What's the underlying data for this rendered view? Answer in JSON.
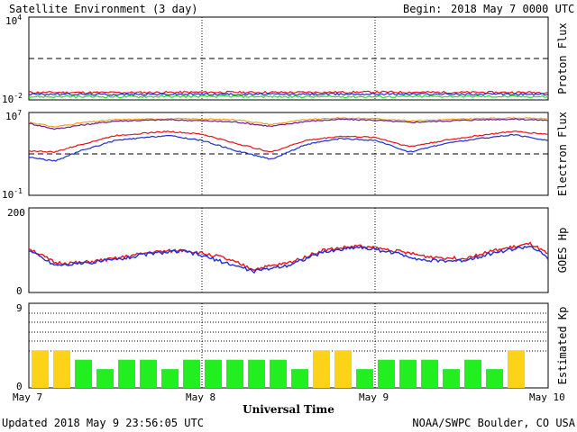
{
  "header": {
    "title": "Satellite Environment (3 day)",
    "begin_label": "Begin:",
    "begin_value": "2018 May 7 0000 UTC"
  },
  "footer": {
    "updated": "Updated 2018 May  9 23:56:05 UTC",
    "source": "NOAA/SWPC Boulder, CO USA"
  },
  "x_axis": {
    "label": "Universal Time",
    "ticks": [
      "May 7",
      "May 8",
      "May 9",
      "May 10"
    ]
  },
  "panels": {
    "proton": {
      "ylabel": "Proton Flux",
      "tick_top_base": "10",
      "tick_top_exp": "4",
      "tick_bot_base": "10",
      "tick_bot_exp": "-2"
    },
    "electron": {
      "ylabel": "Electron Flux",
      "tick_top_base": "10",
      "tick_top_exp": "7",
      "tick_bot_base": "10",
      "tick_bot_exp": "-1"
    },
    "hp": {
      "ylabel": "GOES Hp",
      "tick_top": "200",
      "tick_bot": "0"
    },
    "kp": {
      "ylabel": "Estimated Kp",
      "tick_top": "9",
      "tick_bot": "0"
    }
  },
  "colors": {
    "red": "#e8141c",
    "blue": "#1c2fd8",
    "green": "#22dd22",
    "purple": "#6a1a9a",
    "orange": "#f0a020",
    "kp_green": "#22ee22",
    "kp_yellow": "#ffd21a"
  },
  "chart_data": [
    {
      "type": "line",
      "panel": "Proton Flux",
      "yscale": "log",
      "ylim": [
        0.01,
        10000
      ],
      "threshold": 10,
      "x_days": [
        0,
        0.5,
        1,
        1.5,
        2,
        2.5,
        3
      ],
      "series": [
        {
          "color": "red",
          "values": [
            0.035,
            0.034,
            0.036,
            0.035,
            0.037,
            0.035,
            0.035
          ]
        },
        {
          "color": "blue",
          "values": [
            0.026,
            0.025,
            0.026,
            0.025,
            0.027,
            0.026,
            0.025
          ]
        },
        {
          "color": "green",
          "values": [
            0.017,
            0.017,
            0.018,
            0.017,
            0.017,
            0.018,
            0.017
          ]
        }
      ]
    },
    {
      "type": "line",
      "panel": "Electron Flux",
      "yscale": "log",
      "ylim": [
        0.1,
        10000000
      ],
      "threshold": 1000,
      "x_days": [
        0,
        0.15,
        0.3,
        0.5,
        0.8,
        1.0,
        1.2,
        1.4,
        1.6,
        1.8,
        2.0,
        2.2,
        2.4,
        2.6,
        2.8,
        3.0
      ],
      "series": [
        {
          "color": "orange",
          "values": [
            1200000,
            400000,
            1000000,
            2000000,
            2500000,
            2300000,
            2000000,
            700000,
            2000000,
            3000000,
            2500000,
            1600000,
            2000000,
            2600000,
            3000000,
            2500000
          ]
        },
        {
          "color": "purple",
          "values": [
            900000,
            250000,
            600000,
            1500000,
            2000000,
            1600000,
            1200000,
            450000,
            1400000,
            2200000,
            1800000,
            1100000,
            1500000,
            2000000,
            2300000,
            1800000
          ]
        },
        {
          "color": "red",
          "values": [
            2000,
            1500,
            8000,
            60000,
            150000,
            80000,
            10000,
            1500,
            20000,
            50000,
            40000,
            5000,
            20000,
            60000,
            150000,
            80000
          ]
        },
        {
          "color": "blue",
          "values": [
            500,
            200,
            2000,
            20000,
            60000,
            20000,
            2000,
            300,
            8000,
            30000,
            20000,
            1500,
            10000,
            30000,
            70000,
            20000
          ]
        }
      ]
    },
    {
      "type": "line",
      "panel": "GOES Hp",
      "ylim": [
        0,
        200
      ],
      "x_days": [
        0,
        0.15,
        0.3,
        0.5,
        0.7,
        0.9,
        1.1,
        1.3,
        1.5,
        1.7,
        1.9,
        2.1,
        2.3,
        2.5,
        2.7,
        2.9,
        3.0
      ],
      "series": [
        {
          "color": "red",
          "values": [
            105,
            70,
            70,
            80,
            95,
            100,
            85,
            55,
            70,
            100,
            110,
            100,
            85,
            80,
            100,
            115,
            90
          ]
        },
        {
          "color": "blue",
          "values": [
            100,
            65,
            68,
            78,
            92,
            98,
            75,
            50,
            65,
            95,
            108,
            95,
            75,
            75,
            95,
            110,
            80
          ]
        }
      ]
    },
    {
      "type": "bar",
      "panel": "Estimated Kp",
      "ylim": [
        0,
        9
      ],
      "interval_hours": 3,
      "values": [
        4,
        4,
        3,
        2,
        3,
        3,
        2,
        3,
        3,
        3,
        3,
        3,
        2,
        4,
        4,
        2,
        3,
        3,
        3,
        2,
        3,
        2,
        4,
        0
      ],
      "yellow_at_or_above": 4
    }
  ]
}
